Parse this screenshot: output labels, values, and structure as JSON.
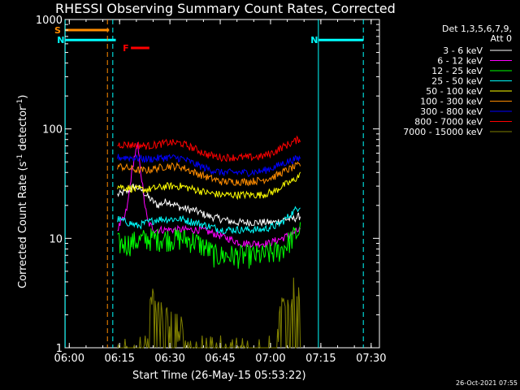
{
  "chart_data": {
    "type": "line",
    "title": "RHESSI Observing Summary Count Rates, Corrected",
    "xlabel": "Start Time (26-May-15 05:53:22)",
    "ylabel_main": "Corrected Count Rate (s",
    "ylabel_sup1": "-1",
    "ylabel_mid": " detector",
    "ylabel_sup2": "-1",
    "ylabel_end": ")",
    "yscale": "log",
    "ylim": [
      1,
      1000
    ],
    "xlim_minutes": [
      5.35,
      99.1
    ],
    "x_start": "05:53:22",
    "x_ticks": [
      {
        "label": "06:00",
        "min": 6.63
      },
      {
        "label": "06:15",
        "min": 21.63
      },
      {
        "label": "06:30",
        "min": 36.63
      },
      {
        "label": "06:45",
        "min": 51.63
      },
      {
        "label": "07:00",
        "min": 66.63
      },
      {
        "label": "07:15",
        "min": 81.63
      },
      {
        "label": "07:30",
        "min": 96.63
      }
    ],
    "y_ticks": [
      {
        "label": "1",
        "v": 1
      },
      {
        "label": "10",
        "v": 10
      },
      {
        "label": "100",
        "v": 100
      },
      {
        "label": "1000",
        "v": 1000
      }
    ],
    "legend_header_1": "Det 1,3,5,6,7,9,",
    "legend_header_2": "Att 0",
    "series": [
      {
        "name": "3 - 6 keV",
        "color": "#ffffff",
        "x": [
          21,
          24,
          26,
          28,
          30,
          33,
          36,
          40,
          44,
          48,
          52,
          56,
          60,
          64,
          68,
          71,
          73,
          75.5
        ],
        "y": [
          25,
          27,
          30,
          28,
          24,
          20,
          22,
          19,
          18,
          16,
          15,
          14,
          14,
          14,
          14,
          15,
          15,
          16
        ]
      },
      {
        "name": "6 - 12 keV",
        "color": "#ff00ff",
        "x": [
          21,
          22,
          23,
          24,
          25,
          26,
          27,
          28,
          29,
          30,
          32,
          34,
          38,
          42,
          46,
          50,
          54,
          58,
          62,
          66,
          70,
          73,
          75.5
        ],
        "y": [
          12,
          14,
          15,
          20,
          35,
          55,
          70,
          40,
          22,
          14,
          12,
          12,
          12,
          12,
          12,
          11,
          10,
          9,
          9,
          9,
          10,
          11,
          12
        ]
      },
      {
        "name": "12 - 25 keV",
        "color": "#00ff00",
        "x": [
          21,
          24,
          27,
          30,
          33,
          36,
          40,
          44,
          48,
          50,
          52,
          56,
          60,
          64,
          68,
          70,
          73,
          75.5
        ],
        "y": [
          9,
          9,
          9.5,
          10,
          10,
          10,
          10,
          9.5,
          8,
          7,
          7,
          7,
          7,
          7,
          7.5,
          8,
          10,
          12
        ]
      },
      {
        "name": "25 - 50 keV",
        "color": "#00ffff",
        "x": [
          21,
          24,
          27,
          30,
          33,
          36,
          40,
          44,
          48,
          52,
          56,
          60,
          64,
          68,
          70,
          73,
          75.5
        ],
        "y": [
          15,
          14,
          13,
          14,
          15,
          15,
          15,
          14,
          13,
          12,
          12,
          12,
          12,
          13,
          14,
          17,
          20
        ]
      },
      {
        "name": "50 - 100 keV",
        "color": "#ffff00",
        "x": [
          21,
          24,
          27,
          30,
          33,
          36,
          40,
          44,
          48,
          52,
          56,
          60,
          64,
          68,
          70,
          73,
          75.5
        ],
        "y": [
          30,
          29,
          28,
          28,
          29,
          30,
          30,
          28,
          26,
          25,
          25,
          25,
          25,
          27,
          30,
          33,
          38
        ]
      },
      {
        "name": "100 - 300 keV",
        "color": "#ff8c00",
        "x": [
          21,
          24,
          27,
          30,
          33,
          36,
          40,
          44,
          48,
          52,
          56,
          60,
          64,
          68,
          70,
          73,
          75.5
        ],
        "y": [
          46,
          44,
          42,
          42,
          44,
          46,
          45,
          40,
          36,
          33,
          33,
          33,
          34,
          37,
          40,
          44,
          47
        ]
      },
      {
        "name": "300 - 800 keV",
        "color": "#0000ff",
        "x": [
          21,
          24,
          27,
          30,
          33,
          36,
          40,
          44,
          48,
          52,
          56,
          60,
          64,
          68,
          70,
          73,
          75.5
        ],
        "y": [
          55,
          55,
          54,
          53,
          54,
          55,
          54,
          48,
          43,
          40,
          40,
          40,
          41,
          45,
          48,
          52,
          54
        ]
      },
      {
        "name": "800 - 7000 keV",
        "color": "#ff0000",
        "x": [
          21,
          24,
          27,
          30,
          33,
          36,
          40,
          44,
          48,
          52,
          56,
          60,
          64,
          68,
          70,
          73,
          75.5
        ],
        "y": [
          72,
          72,
          71,
          70,
          72,
          75,
          74,
          66,
          58,
          55,
          55,
          55,
          56,
          62,
          68,
          75,
          82
        ]
      },
      {
        "name": "7000 - 15000 keV",
        "color": "#808000",
        "x": [
          21,
          30,
          31,
          32,
          40,
          44,
          48,
          56,
          64,
          68,
          70,
          72,
          74,
          75.5
        ],
        "y": [
          1,
          1,
          3,
          2.5,
          1.5,
          1,
          1,
          1,
          1,
          1,
          2.5,
          3,
          3.5,
          4
        ]
      }
    ],
    "attenuator_lines": [
      {
        "min": 5.4,
        "color": "#00ffff",
        "style": "solid"
      },
      {
        "min": 18.0,
        "color": "#ff8c00",
        "style": "dashed"
      },
      {
        "min": 19.6,
        "color": "#00ffff",
        "style": "dashed"
      },
      {
        "min": 80.9,
        "color": "#00ffff",
        "style": "solid"
      },
      {
        "min": 94.3,
        "color": "#00ffff",
        "style": "dashed"
      }
    ],
    "flags": [
      {
        "label": "S",
        "color": "#ff8c00",
        "x0": 5.4,
        "x1": 18.5,
        "y": 800
      },
      {
        "label": "N",
        "color": "#00ffff",
        "x0": 5.4,
        "x1": 20.5,
        "y": 650
      },
      {
        "label": "N",
        "color": "#00ffff",
        "x0": 81,
        "x1": 94.3,
        "y": 650
      },
      {
        "label": "F",
        "color": "#ff0000",
        "x0": 25,
        "x1": 30.5,
        "y": 550
      }
    ],
    "footer_date": "26-Oct-2021 07:55"
  }
}
